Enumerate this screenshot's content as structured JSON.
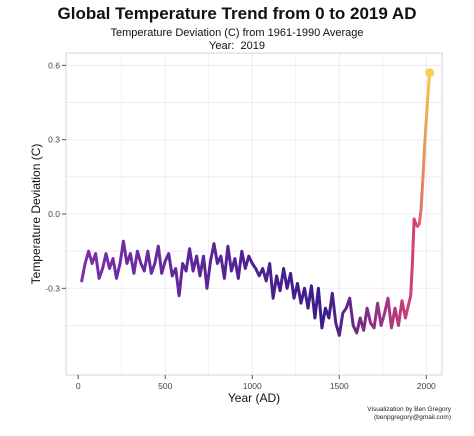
{
  "header": {
    "title": "Global Temperature Trend from 0 to 2019 AD",
    "subtitle": "Temperature Deviation (C) from 1961-1990 Average",
    "year_label": "Year:",
    "year_value": "2019"
  },
  "caption": {
    "line1": "Visualization by Ben Gregory",
    "line2": "(benpgregory@gmail.com)"
  },
  "colors": {
    "line_start": "#7b2fa8",
    "line_mid": "#3b1c8c",
    "line_high": "#d9417a",
    "line_end": "#f2cf4a",
    "point": "#f6cf55",
    "grid": "#f0e8f3",
    "panel_border": "#d8d0de"
  },
  "chart_data": {
    "type": "line",
    "title": "Global Temperature Trend from 0 to 2019 AD",
    "subtitle": "Temperature Deviation (C) from 1961-1990 Average",
    "xlabel": "Year (AD)",
    "ylabel": "Temperature Deviation (C)",
    "xlim": [
      -70,
      2090
    ],
    "ylim": [
      -0.65,
      0.65
    ],
    "xticks": [
      0,
      500,
      1000,
      1500,
      2000
    ],
    "yticks": [
      -0.3,
      0.0,
      0.3,
      0.6
    ],
    "ytick_labels": [
      "-0.3",
      "0.0",
      "0.3",
      "0.6"
    ],
    "grid": true,
    "series": [
      {
        "x": [
          20,
          40,
          60,
          80,
          100,
          120,
          140,
          160,
          180,
          200,
          220,
          240,
          260,
          280,
          300,
          320,
          340,
          360,
          380,
          400,
          420,
          440,
          460,
          480,
          500,
          520,
          540,
          560,
          580,
          600,
          620,
          640,
          660,
          680,
          700,
          720,
          740,
          760,
          780,
          800,
          820,
          840,
          860,
          880,
          900,
          920,
          940,
          960,
          980,
          1000,
          1020,
          1040,
          1060,
          1080,
          1100,
          1120,
          1140,
          1160,
          1180,
          1200,
          1220,
          1240,
          1260,
          1280,
          1300,
          1320,
          1340,
          1360,
          1380,
          1400,
          1420,
          1440,
          1460,
          1480,
          1500,
          1520,
          1540,
          1560,
          1580,
          1600,
          1620,
          1640,
          1660,
          1680,
          1700,
          1720,
          1740,
          1760,
          1780,
          1800,
          1820,
          1840,
          1860,
          1880,
          1900,
          1910,
          1920,
          1930,
          1940,
          1950,
          1960,
          1970,
          1980,
          1990,
          2000,
          2010,
          2019
        ],
        "y": [
          -0.27,
          -0.2,
          -0.15,
          -0.2,
          -0.16,
          -0.26,
          -0.22,
          -0.16,
          -0.22,
          -0.18,
          -0.26,
          -0.2,
          -0.11,
          -0.2,
          -0.16,
          -0.24,
          -0.15,
          -0.2,
          -0.23,
          -0.15,
          -0.24,
          -0.2,
          -0.13,
          -0.24,
          -0.19,
          -0.16,
          -0.25,
          -0.22,
          -0.33,
          -0.2,
          -0.23,
          -0.14,
          -0.23,
          -0.17,
          -0.25,
          -0.17,
          -0.3,
          -0.19,
          -0.12,
          -0.2,
          -0.17,
          -0.26,
          -0.13,
          -0.23,
          -0.18,
          -0.26,
          -0.15,
          -0.22,
          -0.17,
          -0.2,
          -0.22,
          -0.25,
          -0.22,
          -0.27,
          -0.2,
          -0.34,
          -0.25,
          -0.31,
          -0.22,
          -0.3,
          -0.24,
          -0.34,
          -0.28,
          -0.36,
          -0.3,
          -0.38,
          -0.29,
          -0.42,
          -0.3,
          -0.46,
          -0.38,
          -0.42,
          -0.32,
          -0.44,
          -0.49,
          -0.4,
          -0.38,
          -0.34,
          -0.45,
          -0.48,
          -0.42,
          -0.47,
          -0.38,
          -0.44,
          -0.46,
          -0.36,
          -0.45,
          -0.4,
          -0.34,
          -0.46,
          -0.38,
          -0.45,
          -0.35,
          -0.42,
          -0.36,
          -0.33,
          -0.2,
          -0.02,
          -0.04,
          -0.05,
          -0.04,
          0.02,
          0.14,
          0.27,
          0.38,
          0.48,
          0.57
        ]
      }
    ],
    "highlight_point": {
      "x": 2019,
      "y": 0.57
    }
  }
}
